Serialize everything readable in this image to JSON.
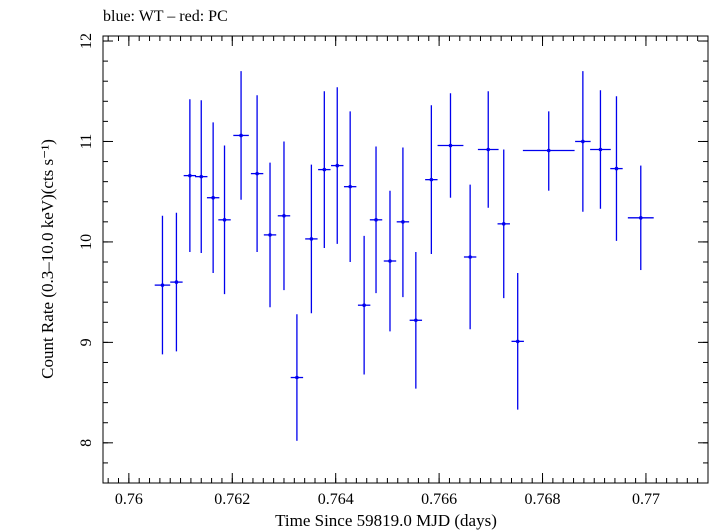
{
  "header_text": "blue: WT – red: PC",
  "chart_data": {
    "type": "scatter",
    "xlabel": "Time Since 59819.0 MJD (days)",
    "ylabel": "Count Rate (0.3–10.0 keV)(cts s⁻¹)",
    "xlim": [
      0.7595,
      0.7712
    ],
    "ylim": [
      7.6,
      12.05
    ],
    "x_ticks": [
      0.76,
      0.762,
      0.764,
      0.766,
      0.768,
      0.77
    ],
    "x_tick_labels": [
      "0.76",
      "0.762",
      "0.764",
      "0.766",
      "0.768",
      "0.77"
    ],
    "y_ticks": [
      8,
      9,
      10,
      11,
      12
    ],
    "y_tick_labels": [
      "8",
      "9",
      "10",
      "11",
      "12"
    ],
    "grid": false,
    "series": [
      {
        "color": "#0000ee",
        "points": [
          {
            "x": 0.76065,
            "y": 9.57,
            "xerr": 0.00015,
            "ylo": 8.88,
            "yhi": 10.26
          },
          {
            "x": 0.76092,
            "y": 9.6,
            "xerr": 0.00012,
            "ylo": 8.91,
            "yhi": 10.29
          },
          {
            "x": 0.76118,
            "y": 10.66,
            "xerr": 0.00012,
            "ylo": 9.9,
            "yhi": 11.42
          },
          {
            "x": 0.7614,
            "y": 10.65,
            "xerr": 0.00012,
            "ylo": 9.89,
            "yhi": 11.41
          },
          {
            "x": 0.76163,
            "y": 10.44,
            "xerr": 0.00012,
            "ylo": 9.69,
            "yhi": 11.19
          },
          {
            "x": 0.76185,
            "y": 10.22,
            "xerr": 0.00012,
            "ylo": 9.48,
            "yhi": 10.96
          },
          {
            "x": 0.76217,
            "y": 11.06,
            "xerr": 0.00015,
            "ylo": 10.42,
            "yhi": 11.7
          },
          {
            "x": 0.76248,
            "y": 10.68,
            "xerr": 0.00012,
            "ylo": 9.9,
            "yhi": 11.46
          },
          {
            "x": 0.76273,
            "y": 10.07,
            "xerr": 0.00012,
            "ylo": 9.35,
            "yhi": 10.79
          },
          {
            "x": 0.763,
            "y": 10.26,
            "xerr": 0.00012,
            "ylo": 9.52,
            "yhi": 11.0
          },
          {
            "x": 0.76325,
            "y": 8.65,
            "xerr": 0.00012,
            "ylo": 8.02,
            "yhi": 9.28
          },
          {
            "x": 0.76353,
            "y": 10.03,
            "xerr": 0.00012,
            "ylo": 9.29,
            "yhi": 10.77
          },
          {
            "x": 0.76378,
            "y": 10.72,
            "xerr": 0.00012,
            "ylo": 9.94,
            "yhi": 11.5
          },
          {
            "x": 0.76403,
            "y": 10.76,
            "xerr": 0.00012,
            "ylo": 9.98,
            "yhi": 11.54
          },
          {
            "x": 0.76428,
            "y": 10.55,
            "xerr": 0.00012,
            "ylo": 9.8,
            "yhi": 11.3
          },
          {
            "x": 0.76455,
            "y": 9.37,
            "xerr": 0.00012,
            "ylo": 8.68,
            "yhi": 10.06
          },
          {
            "x": 0.76478,
            "y": 10.22,
            "xerr": 0.00012,
            "ylo": 9.49,
            "yhi": 10.95
          },
          {
            "x": 0.76505,
            "y": 9.81,
            "xerr": 0.00012,
            "ylo": 9.11,
            "yhi": 10.51
          },
          {
            "x": 0.7653,
            "y": 10.2,
            "xerr": 0.00012,
            "ylo": 9.45,
            "yhi": 10.94
          },
          {
            "x": 0.76555,
            "y": 9.22,
            "xerr": 0.00012,
            "ylo": 8.54,
            "yhi": 9.9
          },
          {
            "x": 0.76585,
            "y": 10.62,
            "xerr": 0.00012,
            "ylo": 9.88,
            "yhi": 11.36
          },
          {
            "x": 0.76622,
            "y": 10.96,
            "xerr": 0.00025,
            "ylo": 10.44,
            "yhi": 11.48
          },
          {
            "x": 0.7666,
            "y": 9.85,
            "xerr": 0.00012,
            "ylo": 9.13,
            "yhi": 10.57
          },
          {
            "x": 0.76695,
            "y": 10.92,
            "xerr": 0.0002,
            "ylo": 10.34,
            "yhi": 11.5
          },
          {
            "x": 0.76725,
            "y": 10.18,
            "xerr": 0.00012,
            "ylo": 9.44,
            "yhi": 10.92
          },
          {
            "x": 0.76752,
            "y": 9.01,
            "xerr": 0.00012,
            "ylo": 8.33,
            "yhi": 9.69
          },
          {
            "x": 0.76812,
            "y": 10.91,
            "xerr": 0.0005,
            "ylo": 10.51,
            "yhi": 11.3
          },
          {
            "x": 0.76878,
            "y": 11.0,
            "xerr": 0.00015,
            "ylo": 10.3,
            "yhi": 11.7
          },
          {
            "x": 0.76912,
            "y": 10.92,
            "xerr": 0.0002,
            "ylo": 10.33,
            "yhi": 11.51
          },
          {
            "x": 0.76943,
            "y": 10.73,
            "xerr": 0.00012,
            "ylo": 10.01,
            "yhi": 11.45
          },
          {
            "x": 0.7699,
            "y": 10.24,
            "xerr": 0.00025,
            "ylo": 9.72,
            "yhi": 10.76
          }
        ]
      }
    ]
  }
}
